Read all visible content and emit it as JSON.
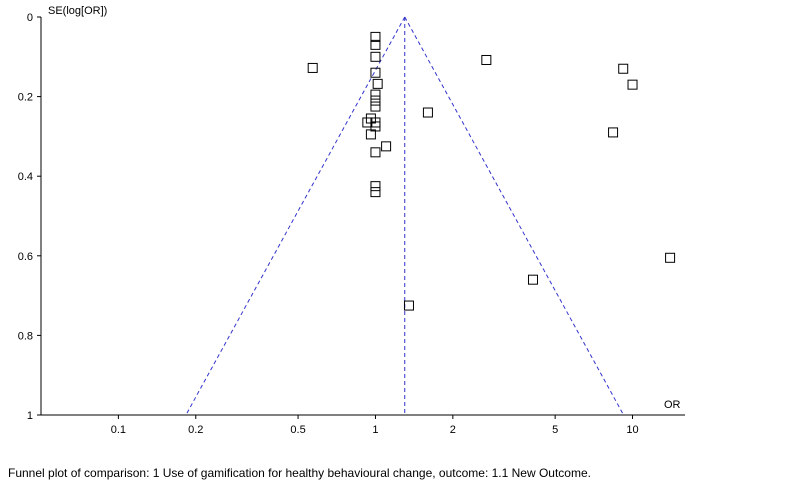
{
  "chart_data": {
    "type": "scatter",
    "subtype": "funnel_plot",
    "ylabel": "SE(log[OR])",
    "xlabel": "OR",
    "x_scale": "log",
    "xlim": [
      0.05,
      16
    ],
    "ylim": [
      0,
      1
    ],
    "y_inverted": true,
    "x_ticks": [
      "0.1",
      "0.2",
      "0.5",
      "1",
      "2",
      "5",
      "10"
    ],
    "x_tick_values": [
      0.1,
      0.2,
      0.5,
      1,
      2,
      5,
      10
    ],
    "y_ticks": [
      "0",
      "0.2",
      "0.4",
      "0.6",
      "0.8",
      "1"
    ],
    "y_tick_values": [
      0,
      0.2,
      0.4,
      0.6,
      0.8,
      1
    ],
    "pooled_or": 1.3,
    "funnel_color": "#3333cc",
    "marker": "open-square",
    "points": [
      {
        "or": 1.0,
        "se": 0.05
      },
      {
        "or": 1.0,
        "se": 0.07
      },
      {
        "or": 1.0,
        "se": 0.1
      },
      {
        "or": 0.57,
        "se": 0.128
      },
      {
        "or": 2.7,
        "se": 0.108
      },
      {
        "or": 9.2,
        "se": 0.13
      },
      {
        "or": 10.0,
        "se": 0.17
      },
      {
        "or": 1.0,
        "se": 0.14
      },
      {
        "or": 1.02,
        "se": 0.168
      },
      {
        "or": 1.0,
        "se": 0.195
      },
      {
        "or": 1.0,
        "se": 0.21
      },
      {
        "or": 1.0,
        "se": 0.225
      },
      {
        "or": 1.6,
        "se": 0.24
      },
      {
        "or": 0.96,
        "se": 0.255
      },
      {
        "or": 0.93,
        "se": 0.265
      },
      {
        "or": 1.0,
        "se": 0.265
      },
      {
        "or": 1.0,
        "se": 0.275
      },
      {
        "or": 0.96,
        "se": 0.295
      },
      {
        "or": 8.4,
        "se": 0.29
      },
      {
        "or": 1.1,
        "se": 0.325
      },
      {
        "or": 1.0,
        "se": 0.34
      },
      {
        "or": 1.0,
        "se": 0.425
      },
      {
        "or": 1.0,
        "se": 0.44
      },
      {
        "or": 14.0,
        "se": 0.605
      },
      {
        "or": 4.1,
        "se": 0.66
      },
      {
        "or": 1.35,
        "se": 0.725
      }
    ]
  },
  "caption": "Funnel plot of comparison: 1 Use of gamification for healthy behavioural change, outcome: 1.1 New Outcome."
}
